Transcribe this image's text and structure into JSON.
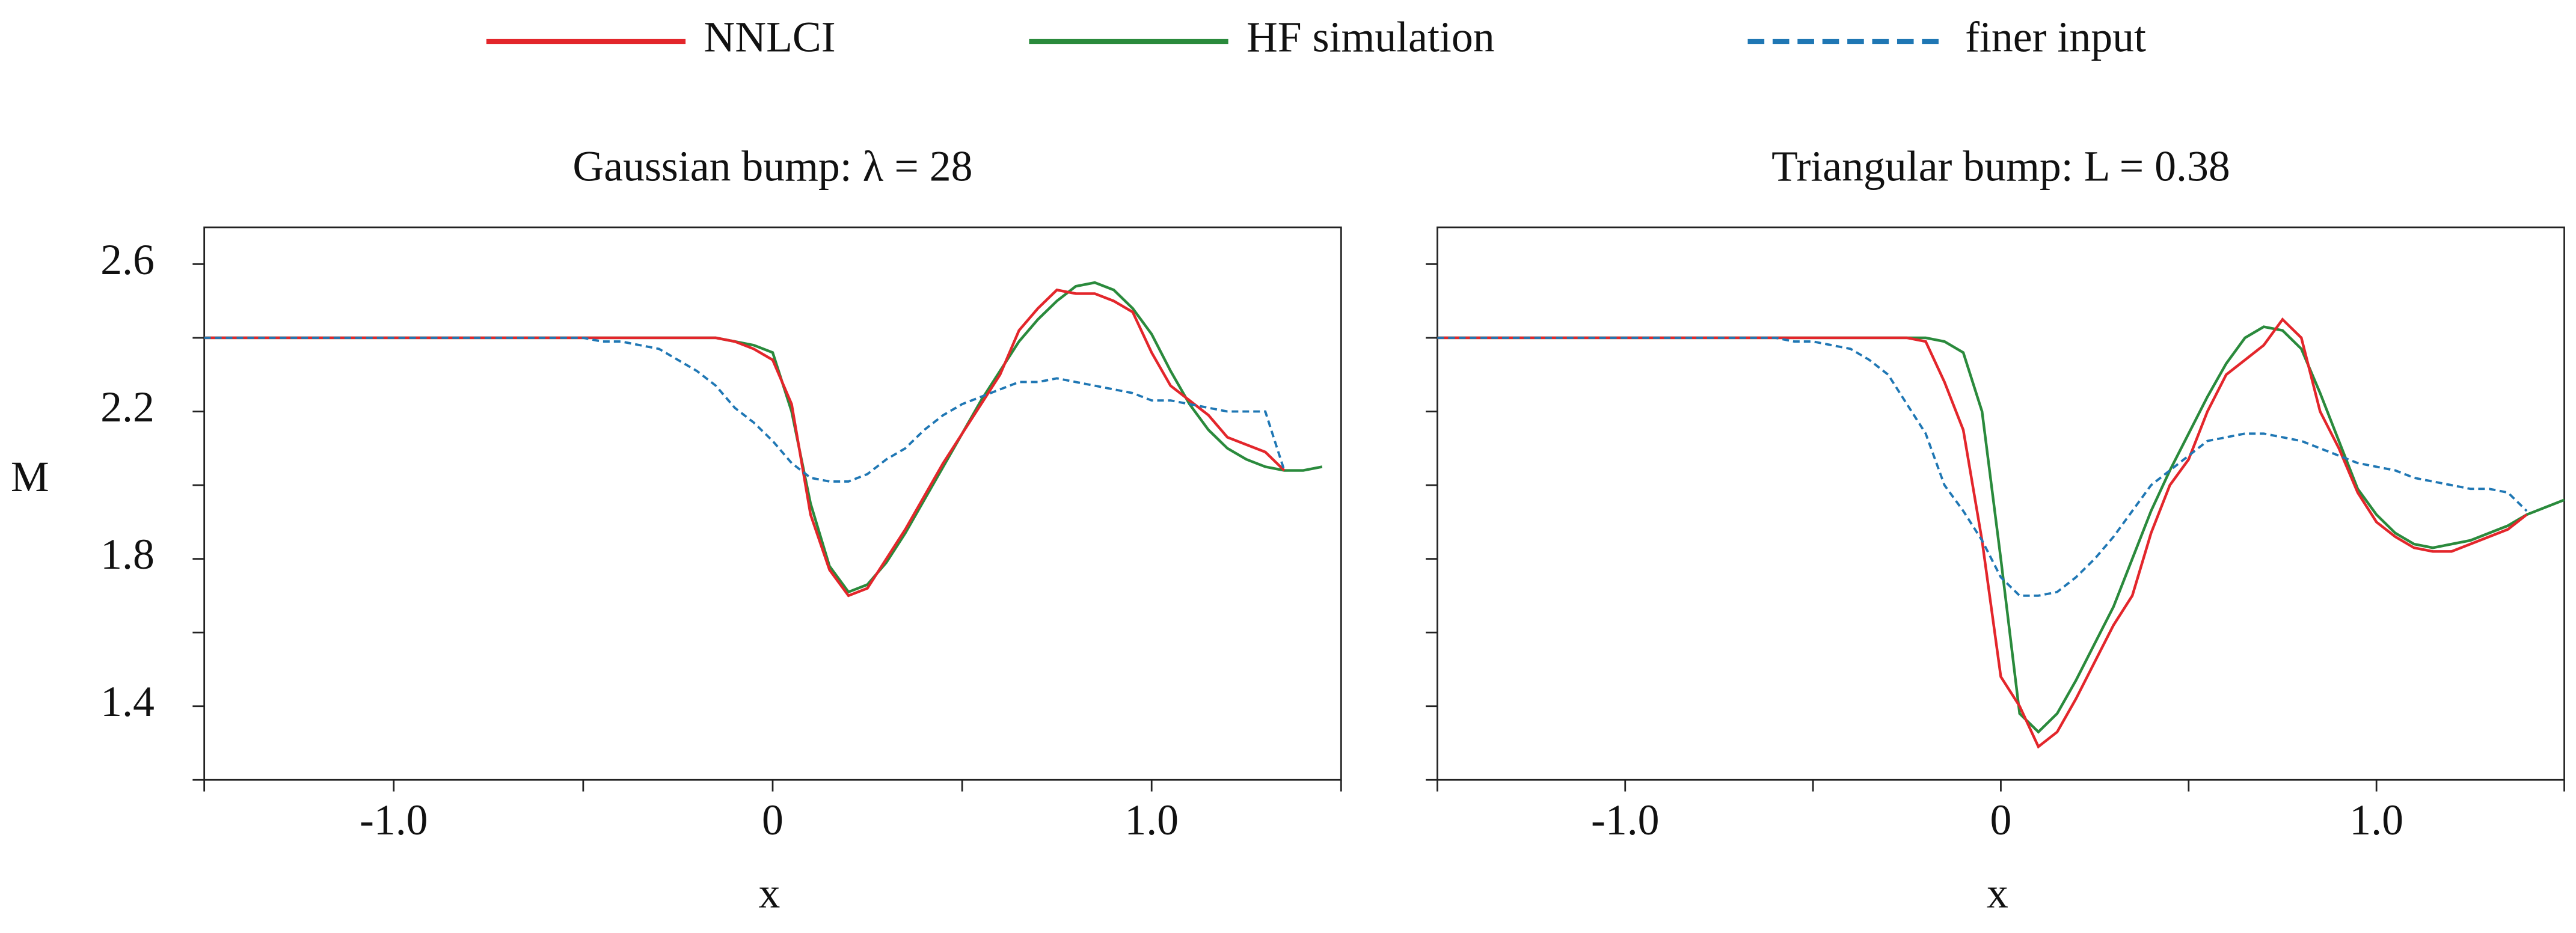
{
  "chart_data": [
    {
      "type": "line",
      "title": "Gaussian bump: λ = 28",
      "xlabel": "x",
      "ylabel": "M",
      "x": [
        -1.5,
        -1.45,
        -1.4,
        -1.35,
        -1.3,
        -1.25,
        -1.2,
        -1.15,
        -1.1,
        -1.05,
        -1.0,
        -0.95,
        -0.9,
        -0.85,
        -0.8,
        -0.75,
        -0.7,
        -0.65,
        -0.6,
        -0.55,
        -0.5,
        -0.45,
        -0.4,
        -0.35,
        -0.3,
        -0.25,
        -0.2,
        -0.15,
        -0.1,
        -0.05,
        0,
        0.05,
        0.1,
        0.15,
        0.2,
        0.25,
        0.3,
        0.35,
        0.4,
        0.45,
        0.5,
        0.55,
        0.6,
        0.65,
        0.7,
        0.75,
        0.8,
        0.85,
        0.9,
        0.95,
        1.0,
        1.05,
        1.1,
        1.15,
        1.2,
        1.25,
        1.3,
        1.35,
        1.4,
        1.45,
        1.5
      ],
      "series": [
        {
          "name": "NNLCI",
          "color": "#e3262b",
          "dash": false,
          "values": [
            2.4,
            2.4,
            2.4,
            2.4,
            2.4,
            2.4,
            2.4,
            2.4,
            2.4,
            2.4,
            2.4,
            2.4,
            2.4,
            2.4,
            2.4,
            2.4,
            2.4,
            2.4,
            2.4,
            2.4,
            2.4,
            2.4,
            2.4,
            2.4,
            2.4,
            2.4,
            2.4,
            2.4,
            2.39,
            2.37,
            2.34,
            2.22,
            1.92,
            1.77,
            1.7,
            1.72,
            1.8,
            1.88,
            1.97,
            2.06,
            2.14,
            2.22,
            2.3,
            2.42,
            2.48,
            2.53,
            2.52,
            2.52,
            2.5,
            2.47,
            2.36,
            2.27,
            2.23,
            2.19,
            2.13,
            2.11,
            2.09,
            2.04,
            null,
            null,
            null
          ]
        },
        {
          "name": "HF simulation",
          "color": "#2a8a3c",
          "dash": false,
          "values": [
            2.4,
            2.4,
            2.4,
            2.4,
            2.4,
            2.4,
            2.4,
            2.4,
            2.4,
            2.4,
            2.4,
            2.4,
            2.4,
            2.4,
            2.4,
            2.4,
            2.4,
            2.4,
            2.4,
            2.4,
            2.4,
            2.4,
            2.4,
            2.4,
            2.4,
            2.4,
            2.4,
            2.4,
            2.39,
            2.38,
            2.36,
            2.2,
            1.95,
            1.78,
            1.71,
            1.73,
            1.79,
            1.87,
            1.96,
            2.05,
            2.14,
            2.23,
            2.31,
            2.39,
            2.45,
            2.5,
            2.54,
            2.55,
            2.53,
            2.48,
            2.41,
            2.31,
            2.22,
            2.15,
            2.1,
            2.07,
            2.05,
            2.04,
            2.04,
            2.05,
            null
          ]
        },
        {
          "name": "finer input",
          "color": "#1f77b4",
          "dash": true,
          "values": [
            2.4,
            2.4,
            2.4,
            2.4,
            2.4,
            2.4,
            2.4,
            2.4,
            2.4,
            2.4,
            2.4,
            2.4,
            2.4,
            2.4,
            2.4,
            2.4,
            2.4,
            2.4,
            2.4,
            2.4,
            2.4,
            2.39,
            2.39,
            2.38,
            2.37,
            2.34,
            2.31,
            2.27,
            2.21,
            2.17,
            2.12,
            2.06,
            2.02,
            2.01,
            2.01,
            2.03,
            2.07,
            2.1,
            2.15,
            2.19,
            2.22,
            2.24,
            2.26,
            2.28,
            2.28,
            2.29,
            2.28,
            2.27,
            2.26,
            2.25,
            2.23,
            2.23,
            2.22,
            2.21,
            2.2,
            2.2,
            2.2,
            2.04,
            null,
            null,
            null
          ]
        }
      ],
      "xlim": [
        -1.5,
        1.5
      ],
      "xticks": [
        {
          "value": -1.0,
          "label": "-1.0"
        },
        0,
        {
          "value": 1.0,
          "label": "1.0"
        }
      ],
      "xminorticks": [
        -1.5,
        -0.5,
        0.5,
        1.5
      ],
      "ylim": [
        1.2,
        2.7
      ],
      "yticks": [
        1.4,
        1.8,
        2.2,
        2.6
      ],
      "yminorticks": [
        1.2,
        1.6,
        2.0,
        2.4
      ]
    },
    {
      "type": "line",
      "title": "Triangular bump: L = 0.38",
      "xlabel": "x",
      "x": [
        -1.5,
        -1.45,
        -1.4,
        -1.35,
        -1.3,
        -1.25,
        -1.2,
        -1.15,
        -1.1,
        -1.05,
        -1.0,
        -0.95,
        -0.9,
        -0.85,
        -0.8,
        -0.75,
        -0.7,
        -0.65,
        -0.6,
        -0.55,
        -0.5,
        -0.45,
        -0.4,
        -0.35,
        -0.3,
        -0.25,
        -0.2,
        -0.15,
        -0.1,
        -0.05,
        0,
        0.05,
        0.1,
        0.15,
        0.2,
        0.25,
        0.3,
        0.35,
        0.4,
        0.45,
        0.5,
        0.55,
        0.6,
        0.65,
        0.7,
        0.75,
        0.8,
        0.85,
        0.9,
        0.95,
        1.0,
        1.05,
        1.1,
        1.15,
        1.2,
        1.25,
        1.3,
        1.35,
        1.4,
        1.45,
        1.5
      ],
      "series": [
        {
          "color": "#e3262b",
          "dash": false,
          "values": [
            2.4,
            2.4,
            2.4,
            2.4,
            2.4,
            2.4,
            2.4,
            2.4,
            2.4,
            2.4,
            2.4,
            2.4,
            2.4,
            2.4,
            2.4,
            2.4,
            2.4,
            2.4,
            2.4,
            2.4,
            2.4,
            2.4,
            2.4,
            2.4,
            2.4,
            2.4,
            2.39,
            2.28,
            2.15,
            1.85,
            1.48,
            1.4,
            1.29,
            1.33,
            1.42,
            1.52,
            1.62,
            1.7,
            1.87,
            2.0,
            2.07,
            2.2,
            2.3,
            2.34,
            2.38,
            2.45,
            2.4,
            2.2,
            2.1,
            1.98,
            1.9,
            1.86,
            1.83,
            1.82,
            1.82,
            1.84,
            1.86,
            1.88,
            1.92,
            null,
            null
          ]
        },
        {
          "color": "#2a8a3c",
          "dash": false,
          "values": [
            2.4,
            2.4,
            2.4,
            2.4,
            2.4,
            2.4,
            2.4,
            2.4,
            2.4,
            2.4,
            2.4,
            2.4,
            2.4,
            2.4,
            2.4,
            2.4,
            2.4,
            2.4,
            2.4,
            2.4,
            2.4,
            2.4,
            2.4,
            2.4,
            2.4,
            2.4,
            2.4,
            2.39,
            2.36,
            2.2,
            1.8,
            1.38,
            1.33,
            1.38,
            1.47,
            1.57,
            1.67,
            1.8,
            1.93,
            2.04,
            2.14,
            2.24,
            2.33,
            2.4,
            2.43,
            2.42,
            2.37,
            2.25,
            2.12,
            1.99,
            1.92,
            1.87,
            1.84,
            1.83,
            1.84,
            1.85,
            1.87,
            1.89,
            1.92,
            1.94,
            1.96
          ]
        },
        {
          "color": "#1f77b4",
          "dash": true,
          "values": [
            2.4,
            2.4,
            2.4,
            2.4,
            2.4,
            2.4,
            2.4,
            2.4,
            2.4,
            2.4,
            2.4,
            2.4,
            2.4,
            2.4,
            2.4,
            2.4,
            2.4,
            2.4,
            2.4,
            2.39,
            2.39,
            2.38,
            2.37,
            2.34,
            2.3,
            2.22,
            2.14,
            2.0,
            1.93,
            1.85,
            1.75,
            1.7,
            1.7,
            1.71,
            1.75,
            1.8,
            1.86,
            1.93,
            2.0,
            2.04,
            2.08,
            2.12,
            2.13,
            2.14,
            2.14,
            2.13,
            2.12,
            2.1,
            2.08,
            2.06,
            2.05,
            2.04,
            2.02,
            2.01,
            2.0,
            1.99,
            1.99,
            1.98,
            1.93,
            null,
            null
          ]
        }
      ],
      "xlim": [
        -1.5,
        1.5
      ],
      "xticks": [
        {
          "value": -1.0,
          "label": "-1.0"
        },
        0,
        {
          "value": 1.0,
          "label": "1.0"
        }
      ],
      "xminorticks": [
        -1.5,
        -0.5,
        0.5,
        1.5
      ],
      "ylim": [
        1.2,
        2.7
      ],
      "yminorticks": [
        1.2,
        1.4,
        1.6,
        1.8,
        2.0,
        2.2,
        2.4,
        2.6
      ]
    }
  ]
}
